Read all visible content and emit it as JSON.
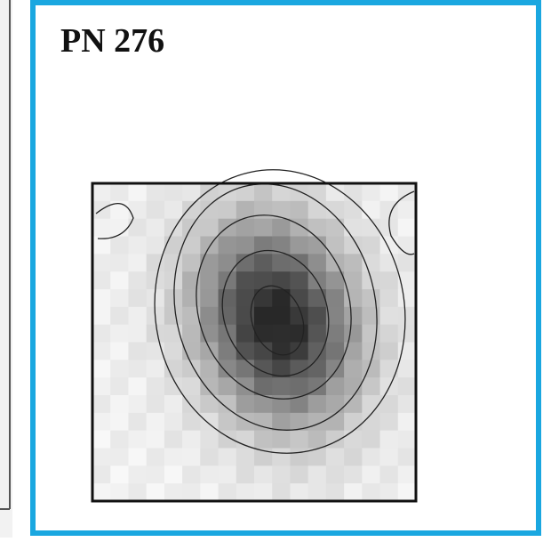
{
  "panel": {
    "label": "PN 276"
  }
}
